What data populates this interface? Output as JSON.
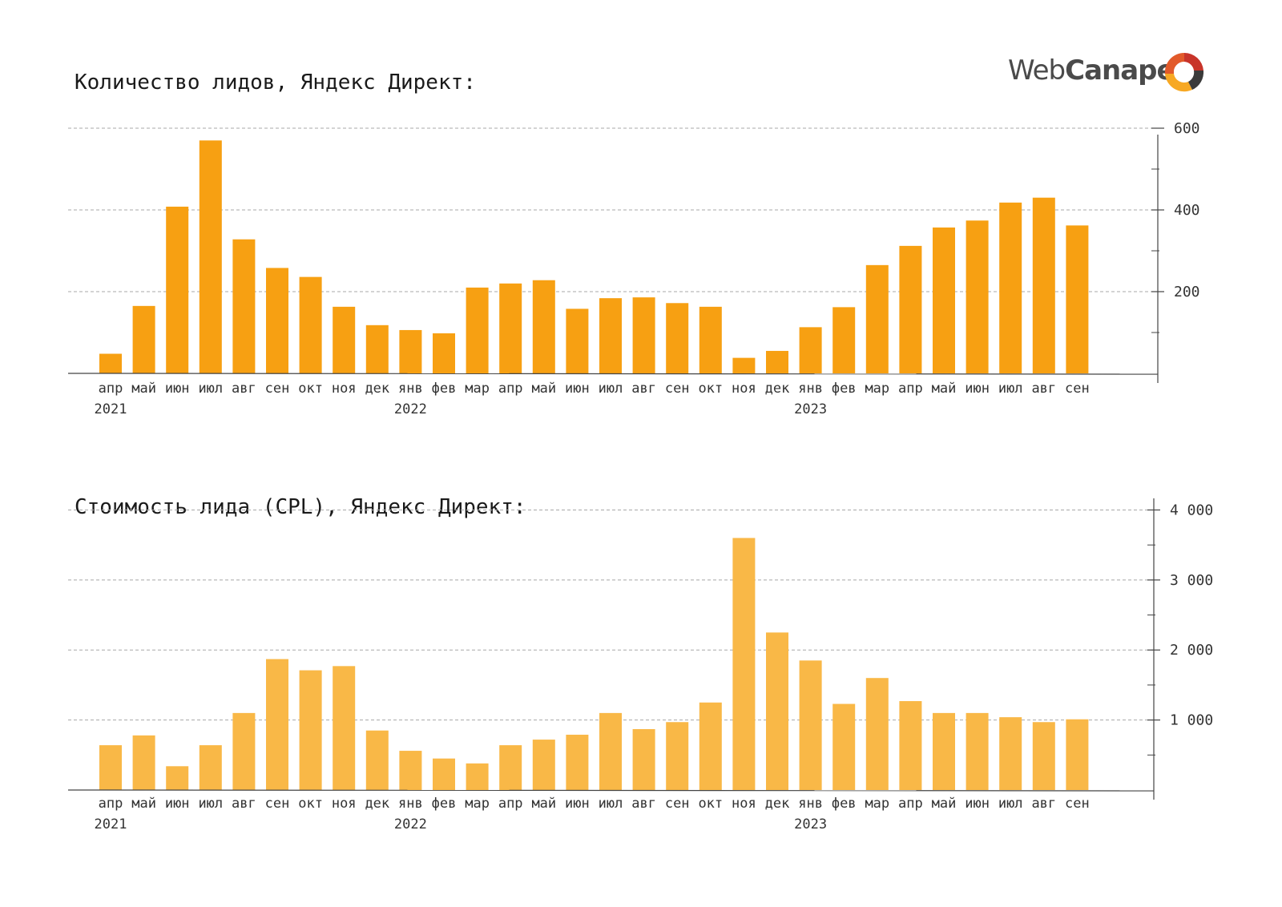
{
  "brand": {
    "name_regular": "Web",
    "name_bold": "Canape",
    "colors": {
      "red": "#c8342a",
      "orange": "#f7a823",
      "dark": "#3a3a3a"
    }
  },
  "chart_data": [
    {
      "type": "bar",
      "title": "Количество лидов, Яндекс Директ:",
      "color": "#f7a012",
      "categories": [
        "апр",
        "май",
        "июн",
        "июл",
        "авг",
        "сен",
        "окт",
        "ноя",
        "дек",
        "янв",
        "фев",
        "мар",
        "апр",
        "май",
        "июн",
        "июл",
        "авг",
        "сен",
        "окт",
        "ноя",
        "дек",
        "янв",
        "фев",
        "мар",
        "апр",
        "май",
        "июн",
        "июл",
        "авг",
        "сен"
      ],
      "years": [
        {
          "index": 0,
          "label": "2021"
        },
        {
          "index": 9,
          "label": "2022"
        },
        {
          "index": 21,
          "label": "2023"
        }
      ],
      "values": [
        48,
        165,
        408,
        570,
        328,
        258,
        236,
        163,
        118,
        106,
        98,
        210,
        220,
        228,
        158,
        184,
        186,
        172,
        163,
        38,
        55,
        113,
        162,
        265,
        312,
        357,
        374,
        418,
        430,
        362
      ],
      "ylim": [
        0,
        700
      ],
      "yticks": [
        {
          "value": 200,
          "label": "200"
        },
        {
          "value": 400,
          "label": "400"
        },
        {
          "value": 600,
          "label": "600"
        }
      ],
      "minor_ticks": [
        100,
        300,
        500
      ],
      "grid": true,
      "axis_position": "right"
    },
    {
      "type": "bar",
      "title": "Стоимость лида (CPL), Яндекс Директ:",
      "color": "#f9b847",
      "categories": [
        "апр",
        "май",
        "июн",
        "июл",
        "авг",
        "сен",
        "окт",
        "ноя",
        "дек",
        "янв",
        "фев",
        "мар",
        "апр",
        "май",
        "июн",
        "июл",
        "авг",
        "сен",
        "окт",
        "ноя",
        "дек",
        "янв",
        "фев",
        "мар",
        "апр",
        "май",
        "июн",
        "июл",
        "авг",
        "сен"
      ],
      "years": [
        {
          "index": 0,
          "label": "2021"
        },
        {
          "index": 9,
          "label": "2022"
        },
        {
          "index": 21,
          "label": "2023"
        }
      ],
      "values": [
        640,
        780,
        340,
        640,
        1100,
        1870,
        1710,
        1770,
        850,
        560,
        450,
        380,
        640,
        720,
        790,
        1100,
        870,
        970,
        1250,
        3600,
        2250,
        1850,
        1230,
        1600,
        1270,
        1100,
        1100,
        1040,
        970,
        1010
      ],
      "ylim": [
        0,
        4200
      ],
      "yticks": [
        {
          "value": 1000,
          "label": "1 000"
        },
        {
          "value": 2000,
          "label": "2 000"
        },
        {
          "value": 3000,
          "label": "3 000"
        },
        {
          "value": 4000,
          "label": "4 000"
        }
      ],
      "minor_ticks": [
        500,
        1500,
        2500,
        3500
      ],
      "grid": true,
      "axis_position": "right"
    }
  ]
}
